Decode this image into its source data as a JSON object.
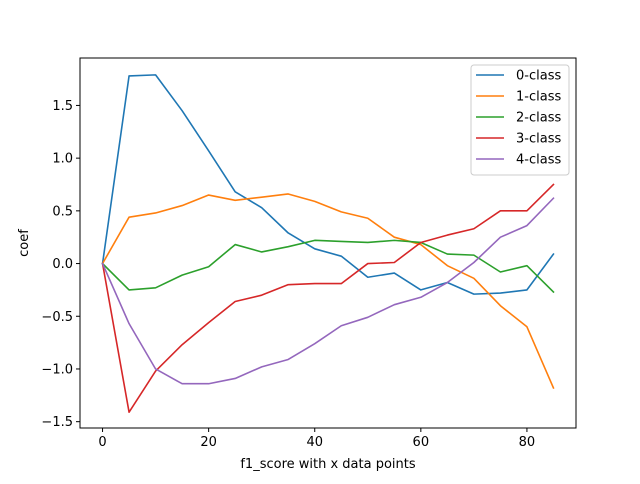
{
  "chart_data": {
    "type": "line",
    "xlabel": "f1_score with x data points",
    "ylabel": "coef",
    "xlim": [
      -4.25,
      89.25
    ],
    "ylim": [
      -1.56,
      1.95
    ],
    "xticks": [
      0,
      20,
      40,
      60,
      80
    ],
    "yticks": [
      -1.5,
      -1.0,
      -0.5,
      0.0,
      0.5,
      1.0,
      1.5
    ],
    "ytick_labels": [
      "−1.5",
      "−1.0",
      "−0.5",
      "0.0",
      "0.5",
      "1.0",
      "1.5"
    ],
    "grid": false,
    "legend_position": "upper right",
    "x": [
      0,
      5,
      10,
      15,
      20,
      25,
      30,
      35,
      40,
      45,
      50,
      55,
      60,
      65,
      70,
      75,
      80,
      85
    ],
    "series": [
      {
        "name": "0-class",
        "color": "#1f77b4",
        "values": [
          0.0,
          1.78,
          1.79,
          1.45,
          1.07,
          0.68,
          0.53,
          0.29,
          0.14,
          0.07,
          -0.13,
          -0.09,
          -0.25,
          -0.18,
          -0.29,
          -0.28,
          -0.25,
          0.09
        ]
      },
      {
        "name": "1-class",
        "color": "#ff7f0e",
        "values": [
          0.0,
          0.44,
          0.48,
          0.55,
          0.65,
          0.6,
          0.63,
          0.66,
          0.59,
          0.49,
          0.43,
          0.25,
          0.18,
          -0.02,
          -0.14,
          -0.4,
          -0.6,
          -1.18
        ]
      },
      {
        "name": "2-class",
        "color": "#2ca02c",
        "values": [
          0.0,
          -0.25,
          -0.23,
          -0.11,
          -0.03,
          0.18,
          0.11,
          0.16,
          0.22,
          0.21,
          0.2,
          0.22,
          0.2,
          0.09,
          0.08,
          -0.08,
          -0.02,
          -0.27
        ]
      },
      {
        "name": "3-class",
        "color": "#d62728",
        "values": [
          0.0,
          -1.41,
          -1.02,
          -0.77,
          -0.56,
          -0.36,
          -0.3,
          -0.2,
          -0.19,
          -0.19,
          0.0,
          0.01,
          0.2,
          0.27,
          0.33,
          0.5,
          0.5,
          0.75
        ]
      },
      {
        "name": "4-class",
        "color": "#9467bd",
        "values": [
          0.0,
          -0.57,
          -1.0,
          -1.14,
          -1.14,
          -1.09,
          -0.98,
          -0.91,
          -0.76,
          -0.59,
          -0.51,
          -0.39,
          -0.32,
          -0.18,
          0.01,
          0.25,
          0.36,
          0.62
        ]
      }
    ]
  }
}
